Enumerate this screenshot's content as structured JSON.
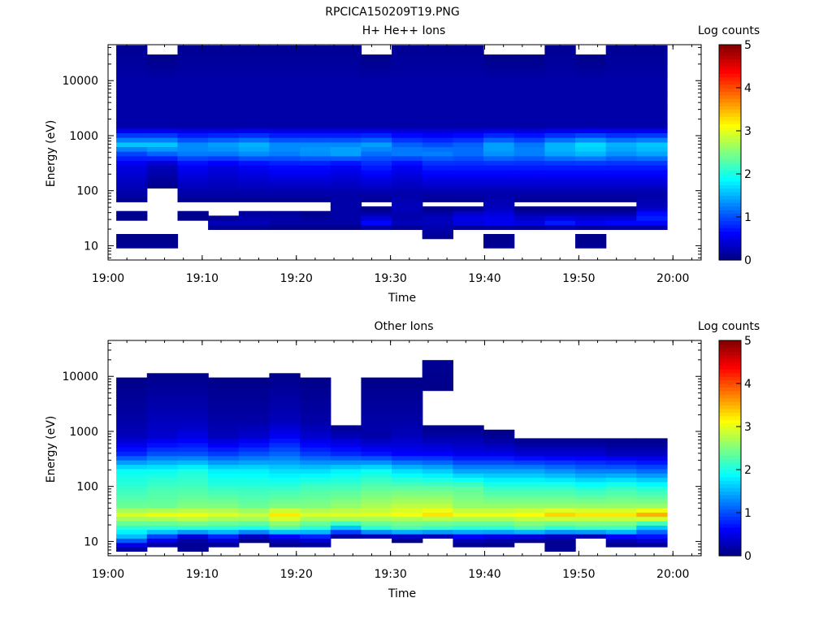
{
  "figure_title": "RPCICA150209T19.PNG",
  "chart_data": [
    {
      "type": "heatmap",
      "title": "H+ He++ Ions",
      "xlabel": "Time",
      "ylabel": "Energy (eV)",
      "x_ticks": [
        "19:00",
        "19:10",
        "19:20",
        "19:30",
        "19:40",
        "19:50",
        "20:00"
      ],
      "xlim": [
        "19:00",
        "20:03"
      ],
      "y_scale": "log",
      "ylim": [
        5.5,
        45000
      ],
      "y_ticks": [
        10,
        100,
        1000,
        10000
      ],
      "y_tick_labels": [
        "10",
        "100",
        "1000",
        "10000"
      ],
      "colorbar": {
        "label": "Log counts",
        "range": [
          0,
          5
        ],
        "ticks": [
          "0",
          "1",
          "2",
          "3",
          "4",
          "5"
        ],
        "colormap": "jet"
      },
      "time_bins": [
        "19:02:30",
        "19:05:45",
        "19:09:00",
        "19:12:15",
        "19:15:30",
        "19:18:45",
        "19:22:00",
        "19:25:15",
        "19:28:30",
        "19:31:45",
        "19:35:00",
        "19:38:15",
        "19:41:30",
        "19:44:45",
        "19:48:00",
        "19:51:15",
        "19:54:30",
        "19:57:45"
      ],
      "energy_profile_log_counts": [
        {
          "energy_eV": 11,
          "values": [
            0.1,
            0.1,
            0,
            0,
            0,
            0,
            0,
            0,
            0,
            0,
            0,
            0,
            0.1,
            0,
            0,
            0.1,
            0,
            0
          ]
        },
        {
          "energy_eV": 20,
          "values": [
            0,
            0,
            0,
            0,
            0,
            0,
            0,
            0,
            0,
            0,
            0.2,
            0,
            0,
            0,
            0,
            0,
            0,
            0
          ]
        },
        {
          "energy_eV": 27,
          "values": [
            0,
            0,
            0,
            0.3,
            0.3,
            0.2,
            0.2,
            0.2,
            0.7,
            0.3,
            0.3,
            0.5,
            0.6,
            0.5,
            0.8,
            0.6,
            0.7,
            0.7
          ]
        },
        {
          "energy_eV": 35,
          "values": [
            0.1,
            0,
            0.1,
            0,
            0.2,
            0.2,
            0.1,
            0.2,
            0.3,
            0.2,
            0.3,
            0.5,
            0.5,
            0.3,
            0.3,
            0.3,
            0.3,
            0.8
          ]
        },
        {
          "energy_eV": 50,
          "values": [
            0,
            0,
            0,
            0,
            0,
            0,
            0,
            0.2,
            0,
            0.3,
            0,
            0,
            0.3,
            0,
            0,
            0,
            0,
            0.3
          ]
        },
        {
          "energy_eV": 90,
          "values": [
            0.2,
            0,
            0.2,
            0.2,
            0.2,
            0.2,
            0.2,
            0.2,
            0.2,
            0.2,
            0.2,
            0.2,
            0.2,
            0.2,
            0.2,
            0.2,
            0.2,
            0.2
          ]
        },
        {
          "energy_eV": 300,
          "values": [
            0.5,
            0.3,
            0.6,
            0.5,
            0.6,
            0.7,
            0.7,
            0.6,
            0.8,
            0.6,
            0.8,
            0.8,
            0.8,
            0.8,
            0.8,
            0.8,
            0.8,
            0.8
          ]
        },
        {
          "energy_eV": 500,
          "values": [
            1.0,
            1.2,
            1.3,
            1.3,
            1.4,
            1.3,
            1.4,
            1.5,
            1.2,
            1.3,
            1.3,
            1.2,
            1.4,
            1.3,
            1.5,
            1.6,
            1.4,
            1.5
          ]
        },
        {
          "energy_eV": 700,
          "values": [
            1.6,
            1.6,
            1.3,
            1.4,
            1.5,
            1.3,
            1.3,
            1.3,
            1.4,
            1.1,
            1.0,
            1.1,
            1.4,
            1.2,
            1.5,
            1.7,
            1.5,
            1.6
          ]
        },
        {
          "energy_eV": 1500,
          "values": [
            0.2,
            0.2,
            0.2,
            0.2,
            0.2,
            0.2,
            0.2,
            0.2,
            0.2,
            0.2,
            0.2,
            0.2,
            0.2,
            0.2,
            0.2,
            0.2,
            0.2,
            0.2
          ]
        },
        {
          "energy_eV": 10000,
          "values": [
            0.2,
            0.2,
            0.2,
            0.2,
            0.2,
            0.2,
            0.2,
            0.2,
            0.2,
            0.2,
            0.2,
            0.2,
            0.2,
            0.2,
            0.2,
            0.2,
            0.2,
            0.2
          ]
        },
        {
          "energy_eV": 40000,
          "values": [
            0.1,
            0,
            0.1,
            0.1,
            0.1,
            0.1,
            0.1,
            0.1,
            0,
            0.1,
            0.1,
            0.1,
            0,
            0,
            0.1,
            0,
            0.1,
            0.1
          ]
        }
      ]
    },
    {
      "type": "heatmap",
      "title": "Other Ions",
      "xlabel": "Time",
      "ylabel": "Energy (eV)",
      "x_ticks": [
        "19:00",
        "19:10",
        "19:20",
        "19:30",
        "19:40",
        "19:50",
        "20:00"
      ],
      "xlim": [
        "19:00",
        "20:03"
      ],
      "y_scale": "log",
      "ylim": [
        5.5,
        45000
      ],
      "y_ticks": [
        10,
        100,
        1000,
        10000
      ],
      "y_tick_labels": [
        "10",
        "100",
        "1000",
        "10000"
      ],
      "colorbar": {
        "label": "Log counts",
        "range": [
          0,
          5
        ],
        "ticks": [
          "0",
          "1",
          "2",
          "3",
          "4",
          "5"
        ],
        "colormap": "jet"
      },
      "time_bins": [
        "19:02:30",
        "19:05:45",
        "19:09:00",
        "19:12:15",
        "19:15:30",
        "19:18:45",
        "19:22:00",
        "19:25:15",
        "19:28:30",
        "19:31:45",
        "19:35:00",
        "19:38:15",
        "19:41:30",
        "19:44:45",
        "19:48:00",
        "19:51:15",
        "19:54:30",
        "19:57:45"
      ],
      "energy_profile_log_counts": [
        {
          "energy_eV": 8,
          "values": [
            0.2,
            0,
            0.1,
            0,
            0,
            0,
            0,
            0,
            0,
            0,
            0,
            0,
            0,
            0,
            0.1,
            0,
            0,
            0
          ]
        },
        {
          "energy_eV": 12,
          "values": [
            1.5,
            0.8,
            0.2,
            0.6,
            0.1,
            0.4,
            0.6,
            0,
            0,
            0.1,
            0,
            0.4,
            0.3,
            0.2,
            0.1,
            0,
            0.4,
            0.6
          ]
        },
        {
          "energy_eV": 17,
          "values": [
            2.0,
            2.0,
            2.0,
            2.0,
            1.9,
            2.2,
            2.0,
            1.4,
            2.0,
            2.2,
            2.1,
            2.0,
            2.0,
            2.2,
            2.0,
            2.1,
            2.1,
            1.4
          ]
        },
        {
          "energy_eV": 25,
          "values": [
            2.6,
            2.6,
            2.7,
            2.6,
            2.6,
            2.8,
            2.6,
            2.6,
            2.6,
            2.6,
            2.6,
            2.6,
            2.6,
            2.7,
            2.7,
            2.7,
            2.7,
            2.7
          ]
        },
        {
          "energy_eV": 30,
          "values": [
            3.0,
            3.1,
            3.1,
            3.0,
            2.9,
            3.3,
            3.0,
            3.0,
            3.0,
            3.1,
            3.3,
            3.1,
            3.1,
            3.2,
            3.4,
            3.3,
            3.3,
            3.6
          ]
        },
        {
          "energy_eV": 45,
          "values": [
            2.4,
            2.4,
            2.5,
            2.5,
            2.4,
            2.5,
            2.5,
            2.6,
            2.7,
            2.8,
            2.8,
            2.6,
            2.6,
            2.6,
            2.6,
            2.6,
            2.6,
            2.6
          ]
        },
        {
          "energy_eV": 100,
          "values": [
            2.1,
            2.2,
            2.2,
            2.1,
            2.1,
            2.1,
            2.2,
            2.2,
            2.3,
            2.3,
            2.3,
            2.3,
            2.1,
            2.1,
            2.1,
            2.0,
            2.1,
            2.0
          ]
        },
        {
          "energy_eV": 200,
          "values": [
            1.9,
            1.9,
            2.0,
            1.8,
            1.8,
            1.7,
            1.7,
            1.8,
            1.9,
            1.7,
            1.6,
            1.4,
            1.4,
            1.4,
            1.3,
            1.2,
            1.2,
            1.1
          ]
        },
        {
          "energy_eV": 400,
          "values": [
            0.8,
            1.0,
            1.0,
            0.9,
            1.0,
            1.1,
            0.9,
            0.8,
            0.7,
            0.6,
            0.6,
            0.5,
            0.5,
            0.4,
            0.4,
            0.4,
            0.3,
            0.3
          ]
        },
        {
          "energy_eV": 800,
          "values": [
            0.3,
            0.4,
            0.5,
            0.3,
            0.4,
            0.6,
            0.4,
            0.3,
            0.2,
            0.3,
            0.2,
            0.2,
            0.1,
            0,
            0,
            0,
            0,
            0
          ]
        },
        {
          "energy_eV": 1500,
          "values": [
            0.2,
            0.3,
            0.3,
            0.2,
            0.2,
            0.3,
            0.2,
            0,
            0.2,
            0.2,
            0,
            0,
            0,
            0,
            0,
            0,
            0,
            0
          ]
        },
        {
          "energy_eV": 18000,
          "values": [
            0,
            0,
            0,
            0,
            0,
            0,
            0,
            0,
            0,
            0,
            0.1,
            0,
            0,
            0,
            0,
            0,
            0,
            0
          ]
        }
      ]
    }
  ]
}
